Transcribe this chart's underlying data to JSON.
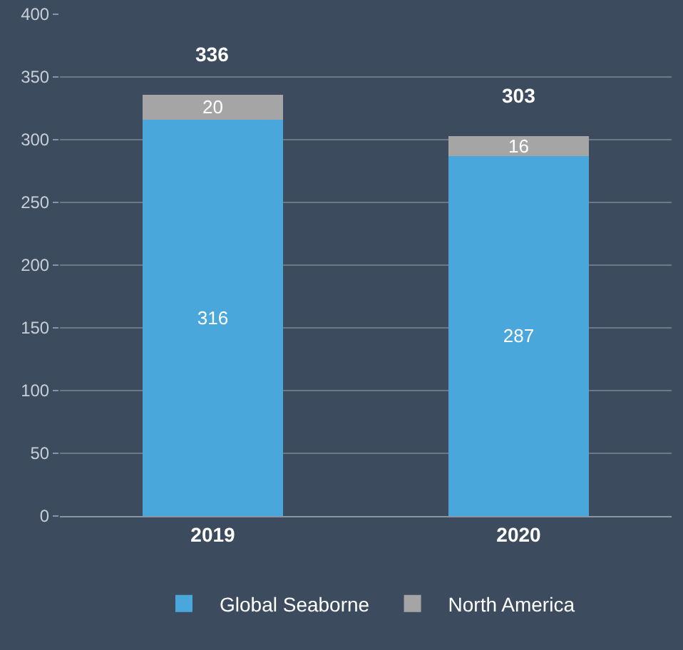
{
  "chart_data": {
    "type": "bar",
    "stacked": true,
    "categories": [
      "2019",
      "2020"
    ],
    "series": [
      {
        "name": "Global Seaborne",
        "color": "#4aa7dc",
        "values": [
          316,
          287
        ]
      },
      {
        "name": "North America",
        "color": "#a5a5a5",
        "values": [
          20,
          16
        ]
      }
    ],
    "ylim": [
      0,
      400
    ],
    "yticks": [
      0,
      50,
      100,
      150,
      200,
      250,
      300,
      350,
      400
    ],
    "grid": "y",
    "legend": "bottom",
    "data_labels": true,
    "totals": [
      "336",
      "303"
    ]
  }
}
